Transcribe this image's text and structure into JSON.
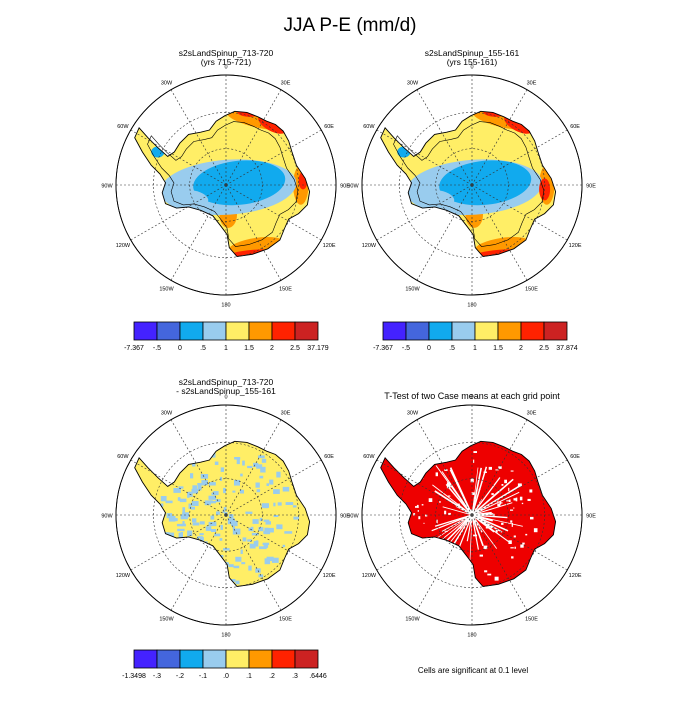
{
  "title": "JJA P-E (mm/d)",
  "lon_labels": [
    "0",
    "30E",
    "60E",
    "90E",
    "120E",
    "150E",
    "180",
    "150W",
    "120W",
    "90W",
    "60W",
    "30W"
  ],
  "panels": [
    {
      "id": "case1",
      "title_lines": [
        "s2sLandSpinup_713-720",
        "(yrs 715-721)"
      ],
      "kind": "field",
      "variant": 1
    },
    {
      "id": "case2",
      "title_lines": [
        "s2sLandSpinup_155-161",
        "(yrs 155-161)"
      ],
      "kind": "field",
      "variant": 2
    },
    {
      "id": "diff",
      "title_lines": [
        "s2sLandSpinup_713-720",
        "- s2sLandSpinup_155-161"
      ],
      "kind": "diff"
    },
    {
      "id": "ttest",
      "title_lines": [
        "T-Test of two Case means at each grid point"
      ],
      "kind": "ttest"
    }
  ],
  "colorbars": [
    {
      "id": "cb1",
      "colors": [
        "#4422ff",
        "#4466dd",
        "#11aaee",
        "#99ccee",
        "#ffee66",
        "#ff9900",
        "#ff2200",
        "#cc2222"
      ],
      "labels": [
        "-7.367",
        "-.5",
        "0",
        ".5",
        "1",
        "1.5",
        "2",
        "2.5",
        "37.179"
      ]
    },
    {
      "id": "cb2",
      "colors": [
        "#4422ff",
        "#4466dd",
        "#11aaee",
        "#99ccee",
        "#ffee66",
        "#ff9900",
        "#ff2200",
        "#cc2222"
      ],
      "labels": [
        "-7.367",
        "-.5",
        "0",
        ".5",
        "1",
        "1.5",
        "2",
        "2.5",
        "37.874"
      ]
    },
    {
      "id": "cb3",
      "colors": [
        "#4422ff",
        "#4466dd",
        "#11aaee",
        "#99ccee",
        "#ffee66",
        "#ff9900",
        "#ff2200",
        "#cc2222"
      ],
      "labels": [
        "-1.3498",
        "-.3",
        "-.2",
        "-.1",
        ".0",
        ".1",
        ".2",
        ".3",
        ".6446"
      ]
    }
  ],
  "footnote": "Cells are significant at 0.1 level"
}
